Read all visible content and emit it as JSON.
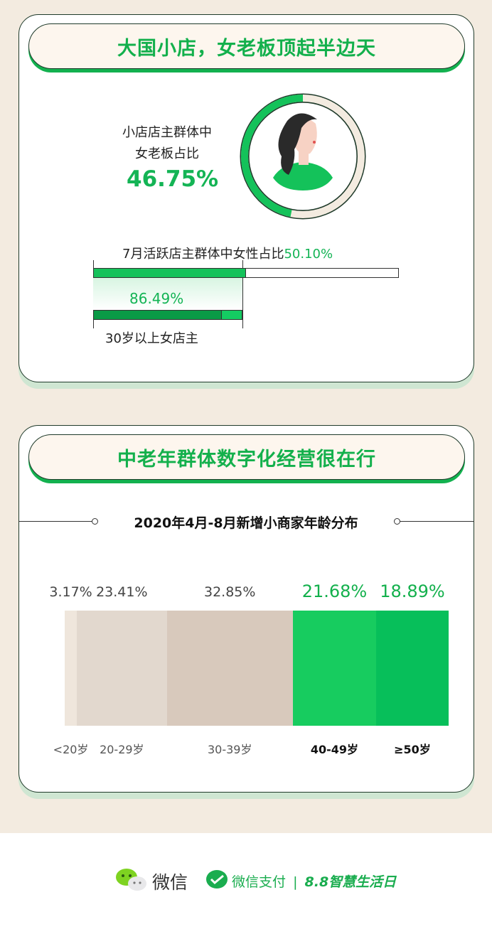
{
  "section1": {
    "title": "大国小店，女老板顶起半边天",
    "ring_label_line1": "小店店主群体中",
    "ring_label_line2": "女老板占比",
    "female_owner_share": "46.75%",
    "female_owner_fraction": 0.4675,
    "active_label": "7月活跃店主群体中女性占比",
    "active_value": "50.10%",
    "active_fraction": 0.501,
    "over30_value": "86.49%",
    "over30_fraction": 0.8649,
    "over30_label": "30岁以上女店主"
  },
  "section2": {
    "title": "中老年群体数字化经营很在行",
    "subtitle": "2020年4月-8月新增小商家年龄分布",
    "segments": [
      {
        "label": "<20岁",
        "value": "3.17%",
        "pct": 3.17,
        "color": "#efe6dc",
        "highlight": false
      },
      {
        "label": "20-29岁",
        "value": "23.41%",
        "pct": 23.41,
        "color": "#e2d8ce",
        "highlight": false
      },
      {
        "label": "30-39岁",
        "value": "32.85%",
        "pct": 32.85,
        "color": "#d8c9bc",
        "highlight": false
      },
      {
        "label": "40-49岁",
        "value": "21.68%",
        "pct": 21.68,
        "color": "#17cc5f",
        "highlight": true
      },
      {
        "label": "≥50岁",
        "value": "18.89%",
        "pct": 18.89,
        "color": "#07bf5a",
        "highlight": true
      }
    ]
  },
  "footer": {
    "wechat": "微信",
    "pay": "微信支付",
    "divider": "|",
    "event": "8.8智慧生活日"
  },
  "colors": {
    "brand_green": "#13b04c",
    "background": "#f3ebe0"
  }
}
